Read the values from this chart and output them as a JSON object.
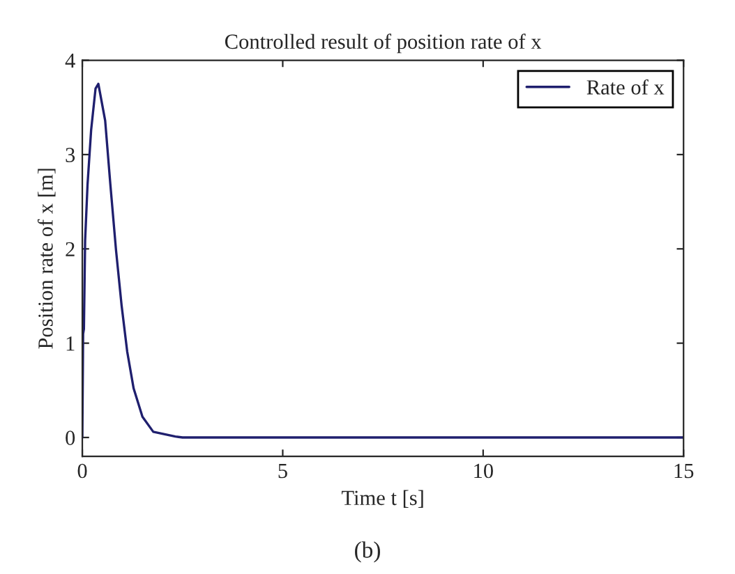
{
  "chart_data": {
    "type": "line",
    "title": "Controlled result of position rate of x",
    "xlabel": "Time t [s]",
    "ylabel": "Position rate of x [m]",
    "annotations": [
      "(b)"
    ],
    "series": [
      {
        "name": "Rate of x",
        "color": "#1f1f6e",
        "x": [
          0,
          0.02,
          0.04,
          0.07,
          0.13,
          0.22,
          0.33,
          0.4,
          0.57,
          0.7,
          0.84,
          0.98,
          1.12,
          1.28,
          1.5,
          1.77,
          2.32,
          2.5,
          15
        ],
        "values": [
          0,
          1.1,
          1.15,
          2.09,
          2.68,
          3.26,
          3.7,
          3.75,
          3.36,
          2.68,
          1.99,
          1.4,
          0.91,
          0.52,
          0.22,
          0.06,
          0.01,
          0,
          0
        ]
      }
    ],
    "xlim": [
      0,
      15
    ],
    "ylim": [
      -0.2,
      4
    ],
    "xticks": [
      0,
      5,
      10,
      15
    ],
    "yticks": [
      0,
      1,
      2,
      3,
      4
    ],
    "legend": "top right",
    "grid": false,
    "line_style": "solid"
  }
}
